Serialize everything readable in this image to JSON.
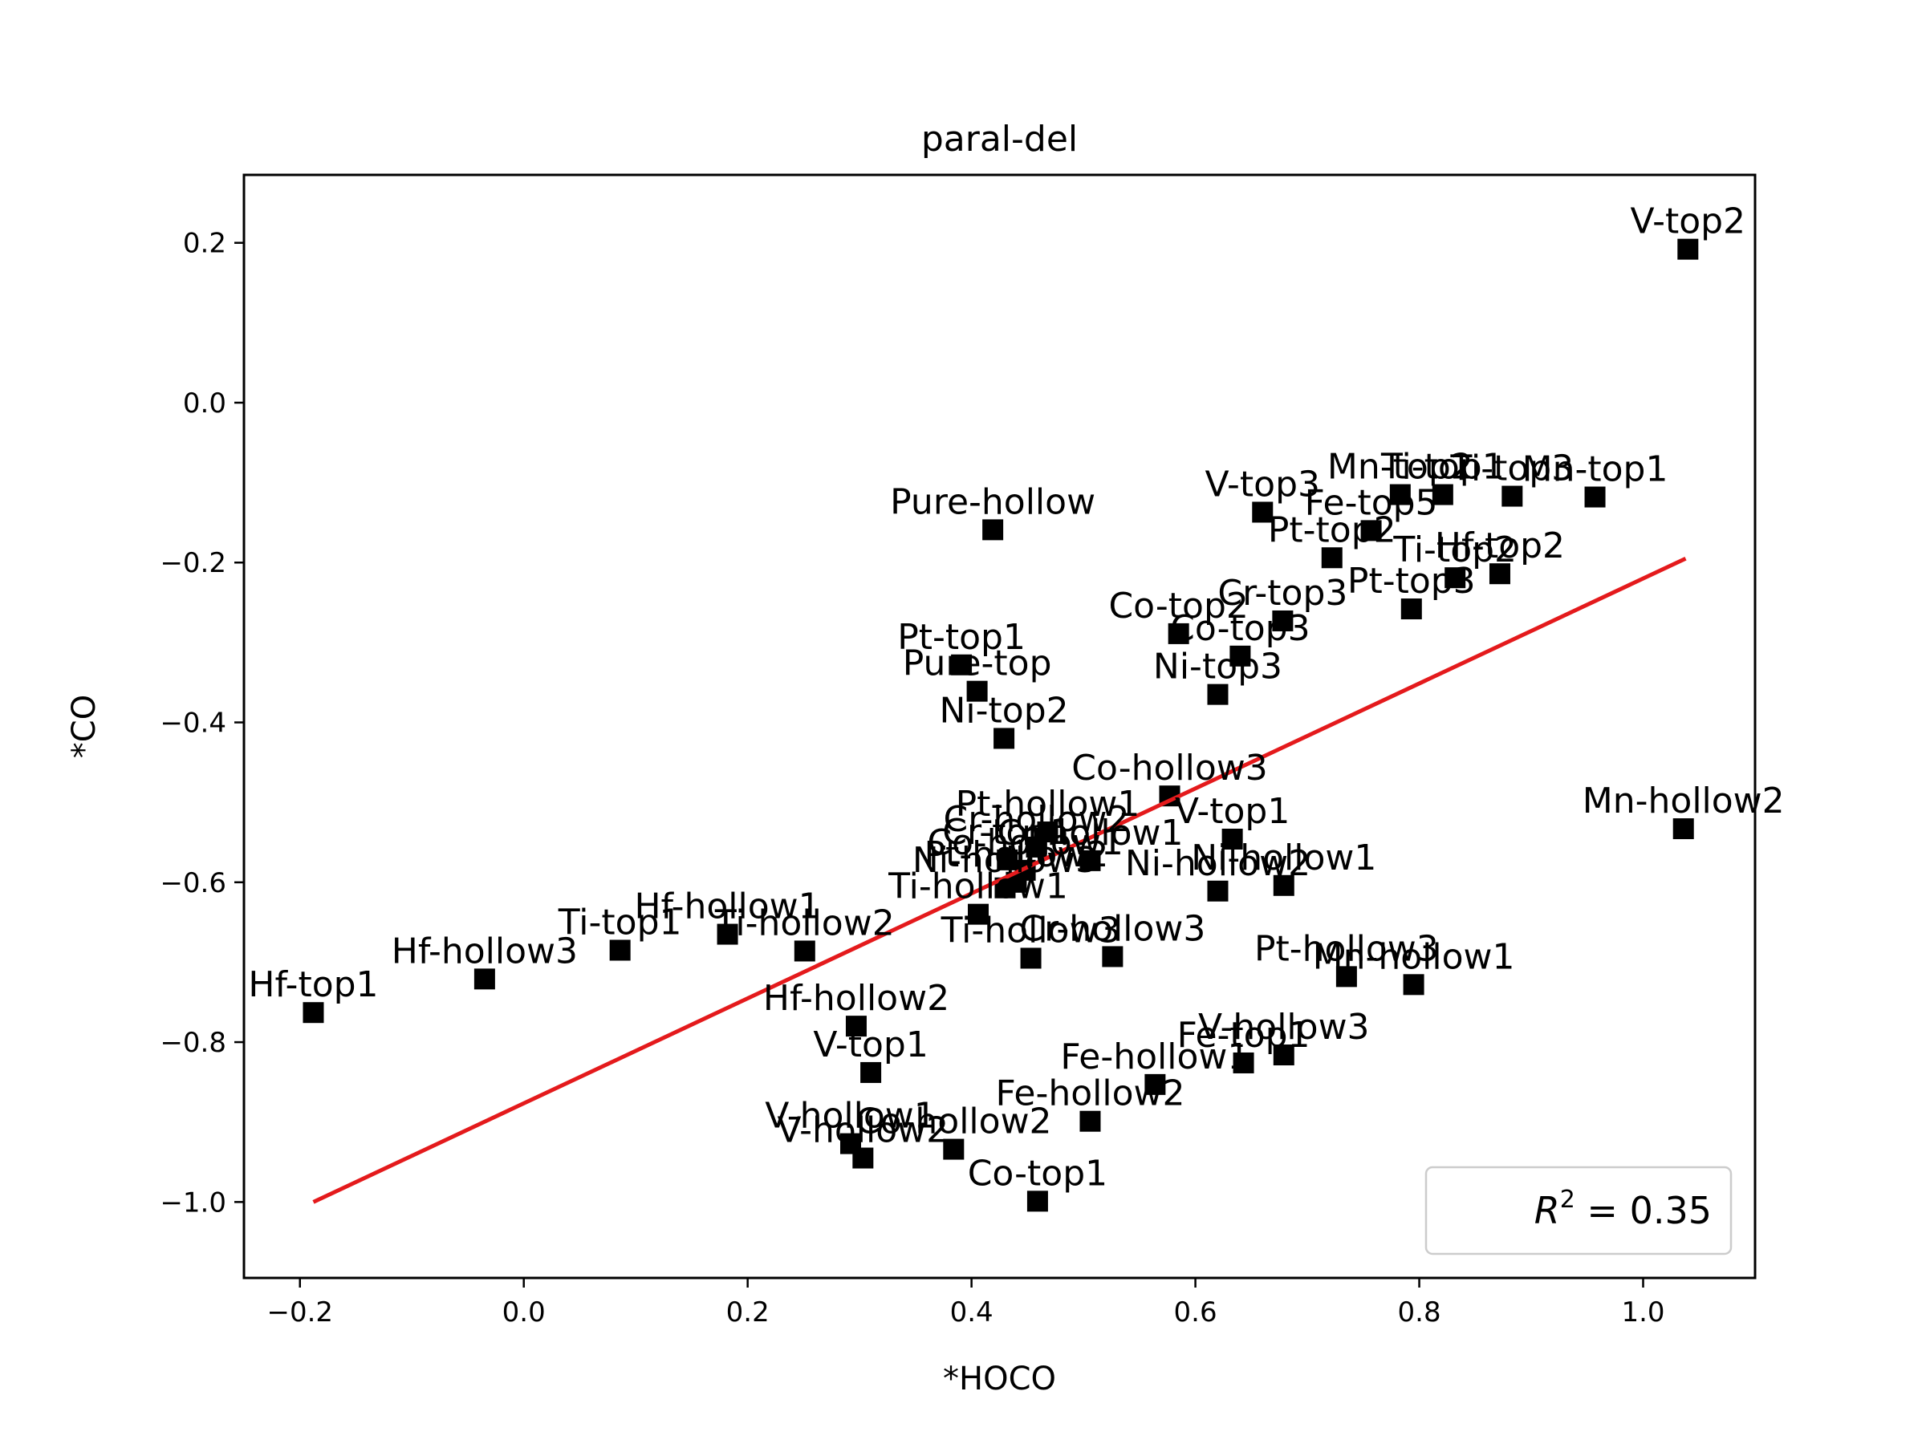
{
  "chart_data": {
    "type": "scatter",
    "title": "paral-del",
    "xlabel": "*HOCO",
    "ylabel": "*CO",
    "xlim": [
      -0.25,
      1.1
    ],
    "ylim": [
      -1.095,
      0.285
    ],
    "xticks": [
      -0.2,
      0.0,
      0.2,
      0.4,
      0.6,
      0.8,
      1.0
    ],
    "xtick_labels": [
      "−0.2",
      "0.0",
      "0.2",
      "0.4",
      "0.6",
      "0.8",
      "1.0"
    ],
    "yticks": [
      0.2,
      0.0,
      -0.2,
      -0.4,
      -0.6,
      -0.8,
      -1.0
    ],
    "ytick_labels": [
      "0.2",
      "0.0",
      "−0.2",
      "−0.4",
      "−0.6",
      "−0.8",
      "−1.0"
    ],
    "grid": false,
    "legend": {
      "text_prefix": "R",
      "text_sup": "2",
      "text_suffix": " = 0.35",
      "placement": "lower-right"
    },
    "fit_line": {
      "color": "#e41a1c",
      "x": [
        -0.188,
        1.038
      ],
      "y": [
        -1.0,
        -0.195
      ]
    },
    "points": [
      {
        "label": "V-top2",
        "x": 1.04,
        "y": 0.192
      },
      {
        "label": "Mn-top1",
        "x": 0.957,
        "y": -0.118
      },
      {
        "label": "Ti-top3",
        "x": 0.883,
        "y": -0.117
      },
      {
        "label": "Ti-top1",
        "x": 0.821,
        "y": -0.115
      },
      {
        "label": "Mn-top2",
        "x": 0.783,
        "y": -0.115
      },
      {
        "label": "V-top3",
        "x": 0.66,
        "y": -0.137
      },
      {
        "label": "Fe-top5",
        "x": 0.757,
        "y": -0.16
      },
      {
        "label": "Pure-hollow",
        "x": 0.419,
        "y": -0.159
      },
      {
        "label": "Pt-top2",
        "x": 0.722,
        "y": -0.194
      },
      {
        "label": "Hf-top2",
        "x": 0.872,
        "y": -0.214
      },
      {
        "label": "Ti-top2",
        "x": 0.832,
        "y": -0.219
      },
      {
        "label": "Pt-top3",
        "x": 0.793,
        "y": -0.258
      },
      {
        "label": "Cr-top3",
        "x": 0.678,
        "y": -0.273
      },
      {
        "label": "Co-top2",
        "x": 0.585,
        "y": -0.289
      },
      {
        "label": "Co-top3",
        "x": 0.64,
        "y": -0.317
      },
      {
        "label": "Pt-top1",
        "x": 0.391,
        "y": -0.328
      },
      {
        "label": "Pure-top",
        "x": 0.405,
        "y": -0.361
      },
      {
        "label": "Ni-top3",
        "x": 0.62,
        "y": -0.365
      },
      {
        "label": "Ni-top2",
        "x": 0.429,
        "y": -0.42
      },
      {
        "label": "Co-hollow3",
        "x": 0.577,
        "y": -0.492
      },
      {
        "label": "Mn-hollow2",
        "x": 1.036,
        "y": -0.533
      },
      {
        "label": "Pt-hollow1",
        "x": 0.468,
        "y": -0.537
      },
      {
        "label": "Cr-hollow2",
        "x": 0.458,
        "y": -0.556
      },
      {
        "label": "V-top1",
        "x": 0.633,
        "y": -0.546
      },
      {
        "label": "Cr-top1",
        "x": 0.432,
        "y": -0.572
      },
      {
        "label": "Co-hollow1",
        "x": 0.448,
        "y": -0.585
      },
      {
        "label": "Cr-hollow1",
        "x": 0.506,
        "y": -0.573
      },
      {
        "label": "Ni-hollow1",
        "x": 0.679,
        "y": -0.604
      },
      {
        "label": "Ni-hollow2",
        "x": 0.62,
        "y": -0.611
      },
      {
        "label": "Ni-hollow3",
        "x": 0.43,
        "y": -0.607
      },
      {
        "label": "Pt-hollow2",
        "x": 0.44,
        "y": -0.6
      },
      {
        "label": "Ti-hollow1",
        "x": 0.406,
        "y": -0.64
      },
      {
        "label": "Hf-hollow1",
        "x": 0.182,
        "y": -0.665
      },
      {
        "label": "Ti-hollow2",
        "x": 0.251,
        "y": -0.686
      },
      {
        "label": "Ti-top1",
        "x": 0.086,
        "y": -0.685
      },
      {
        "label": "Ti-hollow3",
        "x": 0.453,
        "y": -0.695
      },
      {
        "label": "Cr-hollow3",
        "x": 0.526,
        "y": -0.693
      },
      {
        "label": "Hf-hollow3",
        "x": -0.035,
        "y": -0.721
      },
      {
        "label": "Pt-hollow3",
        "x": 0.735,
        "y": -0.718
      },
      {
        "label": "Mn-hollow1",
        "x": 0.795,
        "y": -0.728
      },
      {
        "label": "Hf-top1",
        "x": -0.188,
        "y": -0.763
      },
      {
        "label": "Hf-hollow2",
        "x": 0.297,
        "y": -0.78
      },
      {
        "label": "V-hollow3",
        "x": 0.679,
        "y": -0.816
      },
      {
        "label": "Fe-top1",
        "x": 0.643,
        "y": -0.826
      },
      {
        "label": "V-top1",
        "x": 0.31,
        "y": -0.838
      },
      {
        "label": "Fe-hollow1",
        "x": 0.564,
        "y": -0.853
      },
      {
        "label": "Fe-hollow2",
        "x": 0.506,
        "y": -0.899
      },
      {
        "label": "Co-hollow2",
        "x": 0.384,
        "y": -0.934
      },
      {
        "label": "V-hollow1",
        "x": 0.292,
        "y": -0.927
      },
      {
        "label": "V-hollow2",
        "x": 0.303,
        "y": -0.945
      },
      {
        "label": "Co-top1",
        "x": 0.459,
        "y": -0.999
      }
    ]
  }
}
